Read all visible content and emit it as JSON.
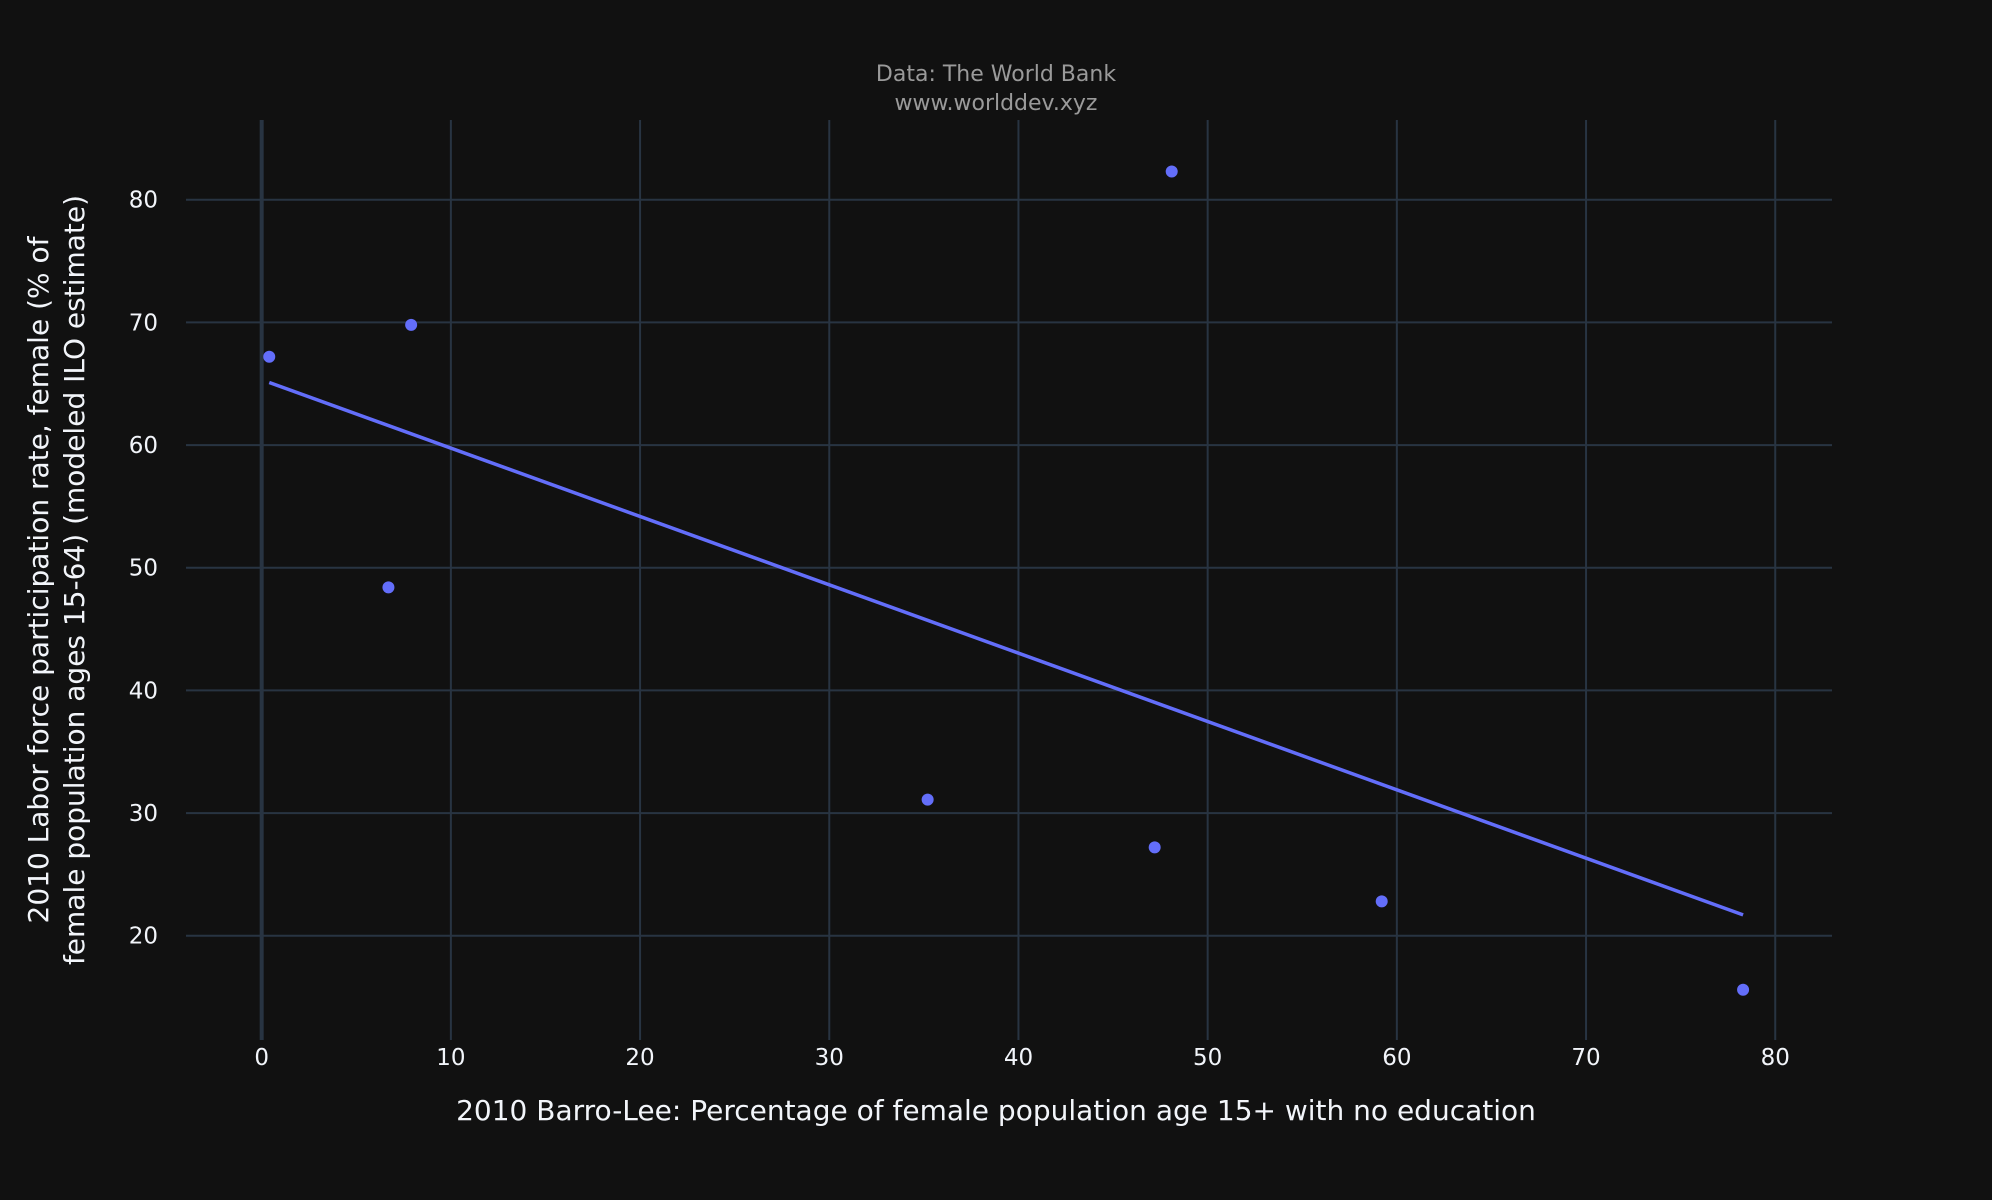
{
  "header": {
    "source_line": "Data: The World Bank",
    "url_line": "www.worlddev.xyz"
  },
  "colors": {
    "background": "#111111",
    "grid": "#283442",
    "marker": "#636efa",
    "text": "#f2f5fa",
    "subtitle_text": "#9a9a9a"
  },
  "chart_data": {
    "type": "scatter",
    "title": "",
    "xlabel": "2010 Barro-Lee: Percentage of female population age 15+ with no education",
    "ylabel_lines": [
      "2010 Labor force participation rate, female (% of",
      "female population ages 15-64) (modeled ILO estimate)"
    ],
    "xlim": [
      -4,
      83
    ],
    "ylim": [
      11.5,
      86.5
    ],
    "x_ticks": [
      0,
      10,
      20,
      30,
      40,
      50,
      60,
      70,
      80
    ],
    "y_ticks": [
      20,
      30,
      40,
      50,
      60,
      70,
      80
    ],
    "grid": true,
    "legend": "none",
    "series": [
      {
        "points": [
          {
            "x": 0.4,
            "y": 67.2
          },
          {
            "x": 7.9,
            "y": 69.8
          },
          {
            "x": 6.7,
            "y": 48.4
          },
          {
            "x": 35.2,
            "y": 31.1
          },
          {
            "x": 47.2,
            "y": 27.2
          },
          {
            "x": 48.1,
            "y": 82.3
          },
          {
            "x": 59.2,
            "y": 22.8
          },
          {
            "x": 78.3,
            "y": 15.6
          }
        ]
      }
    ],
    "trendline": [
      {
        "x": 0.4,
        "y": 65.1
      },
      {
        "x": 78.3,
        "y": 21.7
      }
    ]
  }
}
